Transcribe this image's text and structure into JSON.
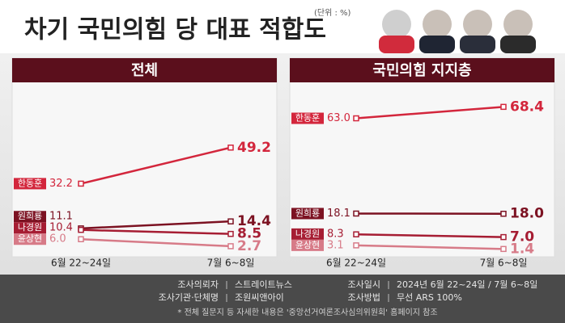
{
  "header": {
    "title": "차기 국민의힘 당 대표 적합도",
    "unit": "(단위 : %)"
  },
  "chart_data": [
    {
      "type": "line",
      "title": "전체",
      "categories": [
        "6월 22~24일",
        "7월 6~8일"
      ],
      "ylim": [
        0,
        75
      ],
      "series": [
        {
          "name": "한동훈",
          "color": "#d3263c",
          "values": [
            32.2,
            49.2
          ],
          "value_labels": [
            "32.2",
            "49.2"
          ]
        },
        {
          "name": "원희룡",
          "color": "#7c1222",
          "values": [
            11.1,
            14.4
          ],
          "value_labels": [
            "11.1",
            "14.4"
          ]
        },
        {
          "name": "나경원",
          "color": "#a61d33",
          "values": [
            10.4,
            8.5
          ],
          "value_labels": [
            "10.4",
            "8.5"
          ]
        },
        {
          "name": "윤상현",
          "color": "#d77b88",
          "values": [
            6.0,
            2.7
          ],
          "value_labels": [
            "6.0",
            "2.7"
          ]
        }
      ]
    },
    {
      "type": "line",
      "title": "국민의힘 지지층",
      "categories": [
        "6월 22~24일",
        "7월 6~8일"
      ],
      "ylim": [
        0,
        75
      ],
      "series": [
        {
          "name": "한동훈",
          "color": "#d3263c",
          "values": [
            63.0,
            68.4
          ],
          "value_labels": [
            "63.0",
            "68.4"
          ]
        },
        {
          "name": "원희룡",
          "color": "#7c1222",
          "values": [
            18.1,
            18.0
          ],
          "value_labels": [
            "18.1",
            "18.0"
          ]
        },
        {
          "name": "나경원",
          "color": "#a61d33",
          "values": [
            8.3,
            7.0
          ],
          "value_labels": [
            "8.3",
            "7.0"
          ]
        },
        {
          "name": "윤상현",
          "color": "#d77b88",
          "values": [
            3.1,
            1.4
          ],
          "value_labels": [
            "3.1",
            "1.4"
          ]
        }
      ]
    }
  ],
  "footer": {
    "rows": [
      [
        "조사의뢰자",
        "스트레이트뉴스",
        "조사일시",
        "2024년 6월 22~24일 / 7월 6~8일"
      ],
      [
        "조사기관·단체명",
        "조원씨앤아이",
        "조사방법",
        "무선 ARS 100%"
      ]
    ],
    "note": "* 전체 질문지 등 자세한 내용은 '중앙선거여론조사심의위원회' 홈페이지 참조"
  }
}
